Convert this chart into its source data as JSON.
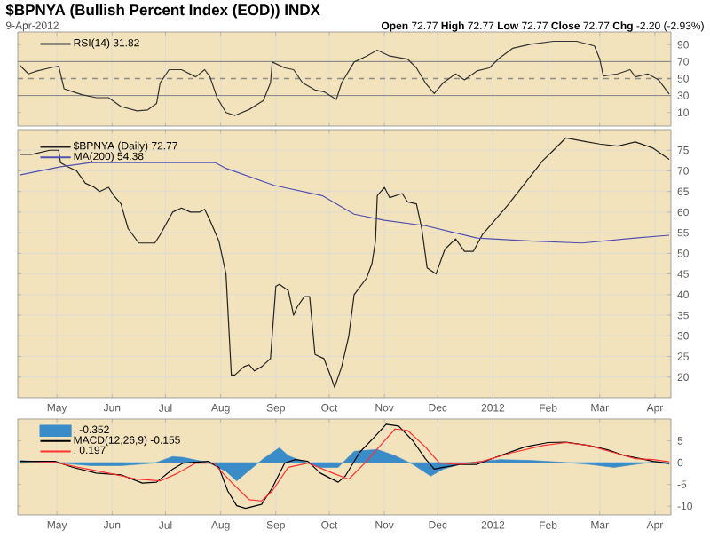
{
  "chart_data": [
    {
      "type": "line",
      "title": "$BPNYA (Bullish Percent Index (EOD)) INDX",
      "annotations": [
        "9-Apr-2012",
        "**Open** 72.77 **High** 72.77 **Low** 72.77 **Close** 72.77 **Chg** -2.20 (-2.93%)"
      ],
      "xlim": [
        "2011-04-09",
        "2012-04-10"
      ],
      "ylim": [
        -6,
        105
      ],
      "yticks": [
        10,
        30,
        50,
        70,
        90
      ],
      "tick_labels": "y",
      "grid": "x",
      "legend": "top left",
      "xticks": [
        {
          "value": "2011-05-01",
          "label": null
        },
        {
          "value": "2011-06-01",
          "label": null
        },
        {
          "value": "2011-07-01",
          "label": null
        },
        {
          "value": "2011-08-01",
          "label": null
        },
        {
          "value": "2011-09-01",
          "label": null
        },
        {
          "value": "2011-10-01",
          "label": null
        },
        {
          "value": "2011-11-01",
          "label": null
        },
        {
          "value": "2011-12-01",
          "label": null
        },
        {
          "value": "2012-01-01",
          "label": null
        },
        {
          "value": "2012-02-01",
          "label": null
        },
        {
          "value": "2012-03-01",
          "label": null
        },
        {
          "value": "2012-04-01",
          "label": null
        }
      ],
      "ref_lines": [
        {
          "axis": "y",
          "value": 70,
          "color": "#8c8c8c"
        },
        {
          "axis": "y",
          "value": 50,
          "color": "#8c8c8c",
          "line_style": "dashed"
        },
        {
          "axis": "y",
          "value": 30,
          "color": "#8c8c8c"
        }
      ],
      "series": [
        {
          "name": "RSI(14) 31.82",
          "color": "#333333",
          "x": [
            "2011-04-10",
            "2011-04-15",
            "2011-04-20",
            "2011-04-27",
            "2011-05-02",
            "2011-05-05",
            "2011-05-10",
            "2011-05-15",
            "2011-05-23",
            "2011-05-30",
            "2011-06-06",
            "2011-06-15",
            "2011-06-21",
            "2011-06-26",
            "2011-06-28",
            "2011-07-03",
            "2011-07-10",
            "2011-07-18",
            "2011-07-23",
            "2011-07-26",
            "2011-07-30",
            "2011-08-04",
            "2011-08-09",
            "2011-08-17",
            "2011-08-25",
            "2011-08-29",
            "2011-08-30",
            "2011-09-06",
            "2011-09-11",
            "2011-09-16",
            "2011-09-23",
            "2011-09-28",
            "2011-10-05",
            "2011-10-08",
            "2011-10-15",
            "2011-10-22",
            "2011-10-28",
            "2011-11-04",
            "2011-11-14",
            "2011-11-19",
            "2011-11-24",
            "2011-11-29",
            "2011-12-04",
            "2011-12-11",
            "2011-12-16",
            "2011-12-23",
            "2011-12-30",
            "2012-01-04",
            "2012-01-12",
            "2012-01-22",
            "2012-02-04",
            "2012-02-17",
            "2012-02-27",
            "2012-03-01",
            "2012-03-03",
            "2012-03-11",
            "2012-03-18",
            "2012-03-21",
            "2012-03-28",
            "2012-04-03",
            "2012-04-09"
          ],
          "values": [
            66,
            55.5,
            59,
            62.6,
            64.7,
            38,
            34.5,
            31,
            27.5,
            27.5,
            17,
            12,
            13,
            20.6,
            45,
            60.5,
            60.5,
            52,
            60.5,
            52,
            27.5,
            10,
            6.5,
            13.5,
            24,
            45,
            69.5,
            62.6,
            60.5,
            45,
            36.6,
            34.5,
            25.4,
            45,
            69.5,
            76.5,
            83.6,
            76.5,
            73,
            62.6,
            45,
            32.4,
            45,
            55.5,
            48.5,
            59,
            62.6,
            73,
            85.7,
            90.5,
            94,
            94,
            88.5,
            73,
            53,
            55.5,
            60.5,
            52,
            55.5,
            48.5,
            31.82
          ]
        }
      ]
    },
    {
      "type": "line",
      "xlim": [
        "2011-04-09",
        "2012-04-10"
      ],
      "ylim": [
        15,
        80
      ],
      "yticks": [
        20,
        25,
        30,
        35,
        40,
        45,
        50,
        55,
        60,
        65,
        70,
        75
      ],
      "grid": true,
      "legend": "top left",
      "xticks": [
        {
          "value": "2011-05-01",
          "label": "May"
        },
        {
          "value": "2011-06-01",
          "label": "Jun"
        },
        {
          "value": "2011-07-01",
          "label": "Jul"
        },
        {
          "value": "2011-08-01",
          "label": "Aug"
        },
        {
          "value": "2011-09-01",
          "label": "Sep"
        },
        {
          "value": "2011-10-01",
          "label": "Oct"
        },
        {
          "value": "2011-11-01",
          "label": "Nov"
        },
        {
          "value": "2011-12-01",
          "label": "Dec"
        },
        {
          "value": "2012-01-01",
          "label": "2012"
        },
        {
          "value": "2012-02-01",
          "label": "Feb"
        },
        {
          "value": "2012-03-01",
          "label": "Mar"
        },
        {
          "value": "2012-04-01",
          "label": "Apr"
        }
      ],
      "series": [
        {
          "name": "$BPNYA (Daily) 72.77",
          "color": "#222222",
          "x": [
            "2011-04-10",
            "2011-04-17",
            "2011-04-27",
            "2011-05-02",
            "2011-05-03",
            "2011-05-07",
            "2011-05-12",
            "2011-05-17",
            "2011-05-22",
            "2011-05-25",
            "2011-05-30",
            "2011-06-02",
            "2011-06-06",
            "2011-06-10",
            "2011-06-16",
            "2011-06-21",
            "2011-06-25",
            "2011-06-28",
            "2011-07-05",
            "2011-07-10",
            "2011-07-15",
            "2011-07-20",
            "2011-07-23",
            "2011-07-26",
            "2011-07-31",
            "2011-08-04",
            "2011-08-07",
            "2011-08-09",
            "2011-08-14",
            "2011-08-17",
            "2011-08-20",
            "2011-08-24",
            "2011-08-29",
            "2011-09-01",
            "2011-09-03",
            "2011-09-08",
            "2011-09-11",
            "2011-09-13",
            "2011-09-17",
            "2011-09-20",
            "2011-09-23",
            "2011-09-28",
            "2011-10-02",
            "2011-10-04",
            "2011-10-08",
            "2011-10-12",
            "2011-10-15",
            "2011-10-22",
            "2011-10-25",
            "2011-10-27",
            "2011-10-28",
            "2011-11-01",
            "2011-11-04",
            "2011-11-11",
            "2011-11-14",
            "2011-11-19",
            "2011-11-22",
            "2011-11-25",
            "2011-11-30",
            "2011-12-05",
            "2011-12-11",
            "2011-12-16",
            "2011-12-21",
            "2011-12-26",
            "2012-01-02",
            "2012-01-09",
            "2012-01-19",
            "2012-01-29",
            "2012-02-04",
            "2012-02-11",
            "2012-02-23",
            "2012-03-01",
            "2012-03-11",
            "2012-03-21",
            "2012-03-31",
            "2012-04-09"
          ],
          "values": [
            74,
            74,
            75,
            75,
            72,
            71,
            70,
            67,
            66,
            65,
            66,
            64,
            62,
            56,
            52.5,
            52.5,
            52.5,
            54.5,
            60,
            61,
            60,
            60,
            60.7,
            58,
            53,
            45,
            20.5,
            20.5,
            22.5,
            23,
            21.5,
            22.5,
            24.5,
            42,
            42.5,
            41,
            35,
            37,
            39.5,
            39.5,
            25.5,
            24.5,
            20,
            17.5,
            22.5,
            30,
            40,
            44,
            47.5,
            53,
            64,
            66,
            63.5,
            64.5,
            62.5,
            62,
            56,
            46.5,
            45,
            51,
            53.5,
            50.5,
            50.5,
            54.5,
            58,
            61.5,
            67,
            72.5,
            75,
            78,
            77,
            76.5,
            76,
            77,
            75.5,
            72.77
          ]
        },
        {
          "name": "MA(200) 54.38",
          "color": "#5050b4",
          "x": [
            "2011-04-10",
            "2011-05-03",
            "2011-05-20",
            "2011-06-11",
            "2011-07-29",
            "2011-08-04",
            "2011-08-31",
            "2011-09-27",
            "2011-10-15",
            "2011-11-01",
            "2011-11-24",
            "2011-12-23",
            "2012-01-21",
            "2012-02-20",
            "2012-03-21",
            "2012-04-09"
          ],
          "values": [
            69,
            71,
            72,
            72,
            72,
            70.6,
            66.5,
            64,
            59.5,
            58,
            56.7,
            53.7,
            53,
            52.5,
            53.7,
            54.38
          ]
        }
      ]
    },
    {
      "type": "line",
      "xlim": [
        "2011-04-09",
        "2012-04-10"
      ],
      "ylim": [
        -12,
        10
      ],
      "yticks": [
        -10,
        -5,
        0,
        5
      ],
      "grid": "x",
      "legend": "top left",
      "xticks": [
        {
          "value": "2011-05-01",
          "label": "May"
        },
        {
          "value": "2011-06-01",
          "label": "Jun"
        },
        {
          "value": "2011-07-01",
          "label": "Jul"
        },
        {
          "value": "2011-08-01",
          "label": "Aug"
        },
        {
          "value": "2011-09-01",
          "label": "Sep"
        },
        {
          "value": "2011-10-01",
          "label": "Oct"
        },
        {
          "value": "2011-11-01",
          "label": "Nov"
        },
        {
          "value": "2011-12-01",
          "label": "Dec"
        },
        {
          "value": "2012-01-01",
          "label": "2012"
        },
        {
          "value": "2012-02-01",
          "label": "Feb"
        },
        {
          "value": "2012-03-01",
          "label": "Mar"
        },
        {
          "value": "2012-04-01",
          "label": "Apr"
        }
      ],
      "series": [
        {
          "name": ", -0.352",
          "type": "area",
          "color": "#3a8cc8",
          "x": [
            "2011-04-10",
            "2011-04-30",
            "2011-05-20",
            "2011-06-06",
            "2011-06-25",
            "2011-07-05",
            "2011-07-11",
            "2011-07-25",
            "2011-08-04",
            "2011-08-10",
            "2011-08-17",
            "2011-08-25",
            "2011-09-03",
            "2011-09-08",
            "2011-09-16",
            "2011-09-26",
            "2011-10-06",
            "2011-10-15",
            "2011-10-28",
            "2011-11-07",
            "2011-11-17",
            "2011-11-27",
            "2011-12-04",
            "2011-12-16",
            "2012-01-05",
            "2012-01-22",
            "2012-02-08",
            "2012-02-24",
            "2012-03-09",
            "2012-03-21",
            "2012-03-31",
            "2012-04-09"
          ],
          "values": [
            0.5,
            0,
            -0.7,
            -0.7,
            -0.1,
            1.4,
            1.2,
            0,
            -2,
            -4.2,
            -1.8,
            0.9,
            3.4,
            1.6,
            0.3,
            -1.1,
            -1.1,
            2.6,
            3,
            1.6,
            -0.4,
            -3.1,
            -1.5,
            -0.1,
            0.7,
            0.5,
            0.1,
            -0.4,
            -1.1,
            -0.4,
            0.1,
            -0.352
          ]
        },
        {
          "name": "MACD(12,26,9) -0.155",
          "color": "#000000",
          "x": [
            "2011-04-10",
            "2011-04-30",
            "2011-05-10",
            "2011-05-23",
            "2011-06-06",
            "2011-06-18",
            "2011-06-26",
            "2011-07-05",
            "2011-07-11",
            "2011-07-25",
            "2011-07-31",
            "2011-08-05",
            "2011-08-10",
            "2011-08-15",
            "2011-08-24",
            "2011-08-30",
            "2011-09-06",
            "2011-09-12",
            "2011-09-19",
            "2011-09-26",
            "2011-10-06",
            "2011-10-10",
            "2011-10-18",
            "2011-10-26",
            "2011-11-02",
            "2011-11-09",
            "2011-11-17",
            "2011-11-24",
            "2011-11-29",
            "2011-12-04",
            "2011-12-14",
            "2011-12-23",
            "2012-01-05",
            "2012-01-19",
            "2012-02-01",
            "2012-02-11",
            "2012-02-24",
            "2012-03-05",
            "2012-03-15",
            "2012-03-24",
            "2012-03-31",
            "2012-04-09"
          ],
          "values": [
            0.3,
            0.3,
            -1.1,
            -2.4,
            -2.8,
            -4.7,
            -4.5,
            -1.5,
            -0.1,
            0.3,
            -1.1,
            -6.5,
            -9.9,
            -10.5,
            -9.6,
            -5.8,
            -0.1,
            0.7,
            0.3,
            -2.4,
            -4.5,
            -3.1,
            2.3,
            5.7,
            8.8,
            8.4,
            5,
            0.9,
            -1.5,
            -1.1,
            -0.4,
            -0.4,
            1.6,
            3.6,
            4.6,
            4.7,
            3.9,
            3,
            1.6,
            0.9,
            0.3,
            -0.155
          ]
        },
        {
          "name": ", 0.197",
          "color": "#ff3030",
          "x": [
            "2011-04-10",
            "2011-04-30",
            "2011-05-13",
            "2011-05-30",
            "2011-06-15",
            "2011-06-28",
            "2011-07-08",
            "2011-07-18",
            "2011-07-28",
            "2011-08-07",
            "2011-08-17",
            "2011-08-24",
            "2011-08-30",
            "2011-09-08",
            "2011-09-19",
            "2011-10-03",
            "2011-10-12",
            "2011-10-22",
            "2011-11-01",
            "2011-11-07",
            "2011-11-14",
            "2011-11-24",
            "2011-12-02",
            "2011-12-14",
            "2011-12-26",
            "2012-01-12",
            "2012-01-29",
            "2012-02-11",
            "2012-02-24",
            "2012-03-09",
            "2012-03-21",
            "2012-03-31",
            "2012-04-09"
          ],
          "values": [
            -0.1,
            0.1,
            -1.1,
            -2.4,
            -3.8,
            -4.2,
            -2.4,
            -0.1,
            -0.1,
            -4.5,
            -8.5,
            -8.8,
            -6.5,
            -1.1,
            -0.1,
            -2.4,
            -3.8,
            0.3,
            5,
            7.7,
            7.4,
            3.6,
            -0.1,
            -0.4,
            0.3,
            2.3,
            3.9,
            4.6,
            3.9,
            2.3,
            0.9,
            0.7,
            0.197
          ]
        }
      ]
    }
  ]
}
